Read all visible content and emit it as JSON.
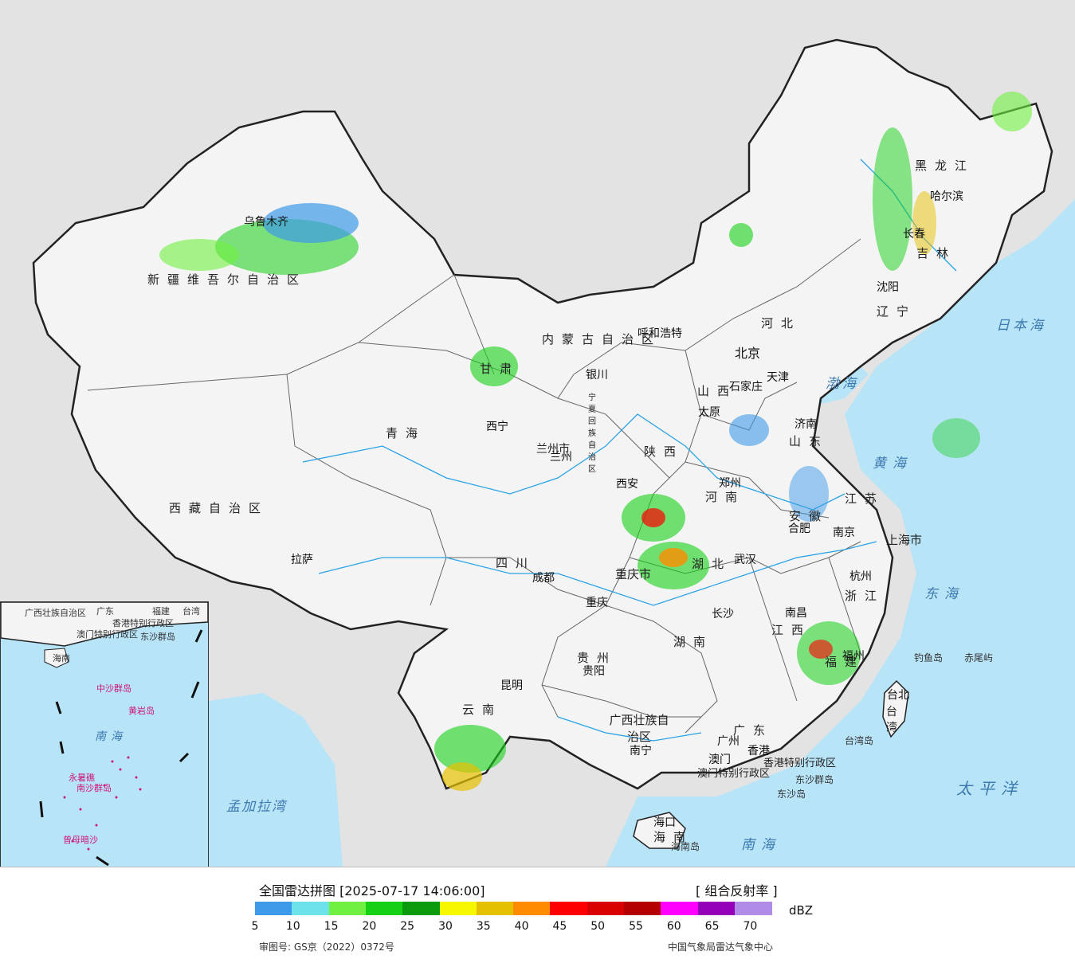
{
  "map": {
    "provinces": [
      "新疆维吾尔自治区",
      "西藏自治区",
      "青海",
      "甘肃",
      "内蒙古自治区",
      "黑龙江",
      "吉林",
      "辽宁",
      "河北",
      "山西",
      "陕西",
      "河南",
      "山东",
      "江苏",
      "安徽",
      "湖北",
      "四川",
      "重庆市",
      "贵州",
      "云南",
      "广西壮族自治区",
      "广东",
      "湖南",
      "江西",
      "福建",
      "浙江",
      "上海市",
      "宁夏回族自治区",
      "兰州市",
      "海南",
      "台湾",
      "香港特别行政区",
      "澳门特别行政区"
    ],
    "cities": [
      "乌鲁木齐",
      "拉萨",
      "西宁",
      "兰州",
      "银川",
      "呼和浩特",
      "北京",
      "天津",
      "石家庄",
      "太原",
      "济南",
      "郑州",
      "西安",
      "南京",
      "合肥",
      "上海",
      "杭州",
      "武汉",
      "成都",
      "重庆",
      "长沙",
      "南昌",
      "福州",
      "贵阳",
      "昆明",
      "南宁",
      "广州",
      "香港",
      "澳门",
      "海口",
      "台北",
      "哈尔滨",
      "长春",
      "沈阳"
    ],
    "seas": [
      "黄海",
      "东海",
      "南海",
      "太平洋",
      "日本海",
      "渤海",
      "孟加拉湾"
    ],
    "islands": [
      "钓鱼岛",
      "赤尾屿",
      "台湾岛",
      "东沙群岛",
      "东沙岛",
      "海南岛"
    ],
    "inset_labels": [
      "广西壮族自治区",
      "广东",
      "福建",
      "台湾",
      "香港特别行政区",
      "澳门特别行政区",
      "东沙群岛",
      "海南",
      "中沙群岛",
      "黄岩岛",
      "南沙群岛",
      "南海",
      "曾母暗沙",
      "永暑礁"
    ],
    "colors": {
      "land": "#f4f4f4",
      "ocean": "#b8e4f8",
      "outside": "#e3e3e3",
      "border": "#222222",
      "water": "#29a3e6"
    }
  },
  "legend": {
    "title": "全国雷达拼图 [2025-07-17 14:06:00]",
    "product": "[ 组合反射率 ]",
    "unit": "dBZ",
    "ticks": [
      "5",
      "10",
      "15",
      "20",
      "25",
      "30",
      "35",
      "40",
      "45",
      "50",
      "55",
      "60",
      "65",
      "70"
    ],
    "colors": [
      "#3d9ae8",
      "#6ee2ea",
      "#70f040",
      "#15d015",
      "#0b9a0b",
      "#f7f700",
      "#e5c000",
      "#ff8c00",
      "#ff0000",
      "#d90000",
      "#b50000",
      "#ff00ff",
      "#9400b8",
      "#b08ce8"
    ],
    "approval": "审图号: GS京（2022）0372号",
    "source": "中国气象局雷达气象中心"
  }
}
